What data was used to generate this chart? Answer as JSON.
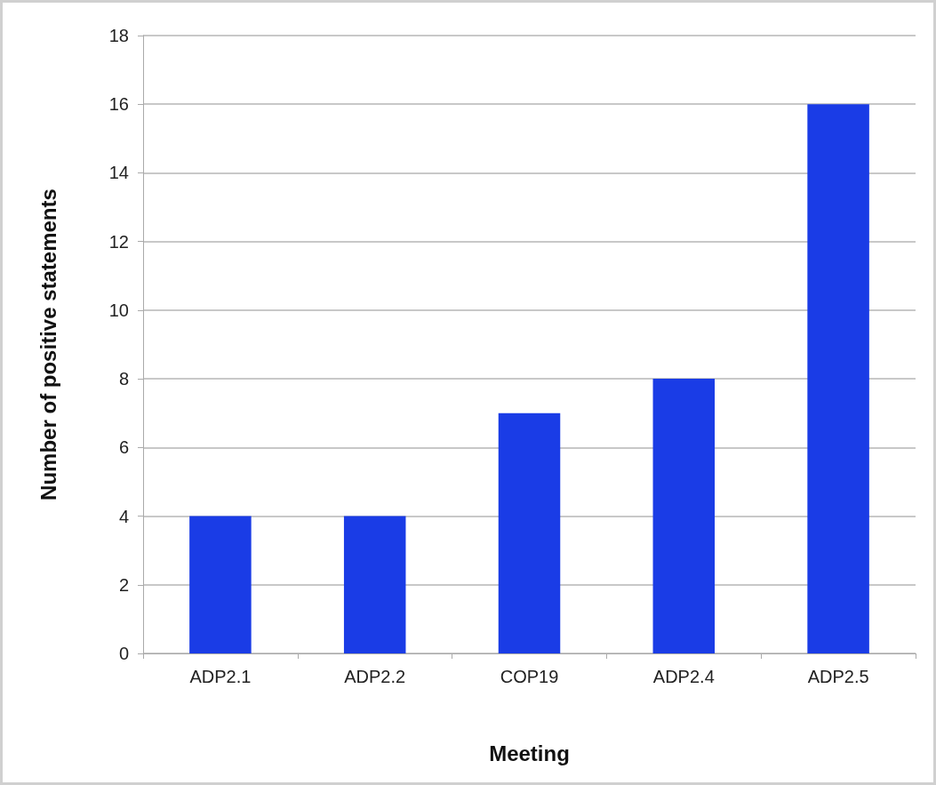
{
  "chart_data": {
    "type": "bar",
    "xlabel": "Meeting",
    "ylabel": "Number of positive statements",
    "categories": [
      "ADP2.1",
      "ADP2.2",
      "COP19",
      "ADP2.4",
      "ADP2.5"
    ],
    "values": [
      4,
      4,
      7,
      8,
      16
    ],
    "color": "#1a3ce6",
    "ylim": [
      0,
      18
    ],
    "yticks": [
      0,
      2,
      4,
      6,
      8,
      10,
      12,
      14,
      16,
      18
    ],
    "grid": "y"
  }
}
